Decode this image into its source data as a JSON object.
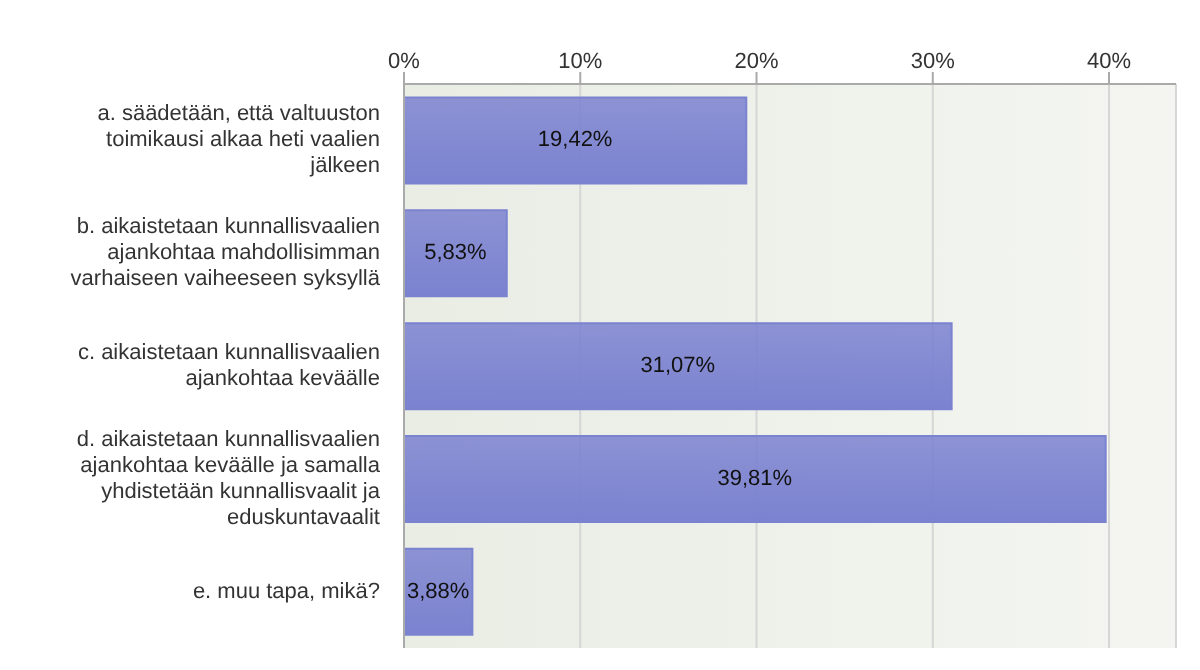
{
  "chart_data": {
    "type": "bar",
    "orientation": "horizontal",
    "categories": [
      "a. säädetään, että valtuuston toimikausi alkaa heti vaalien jälkeen",
      "b. aikaistetaan kunnallisvaalien ajankohtaa mahdollisimman varhaiseen vaiheeseen syksyllä",
      "c. aikaistetaan kunnallisvaalien ajankohtaa keväälle",
      "d. aikaistetaan kunnallisvaalien ajankohtaa keväälle ja samalla yhdistetään kunnallisvaalit ja eduskuntavaalit",
      "e. muu tapa, mikä?"
    ],
    "values": [
      19.42,
      5.83,
      31.07,
      39.81,
      3.88
    ],
    "value_labels": [
      "19,42%",
      "5,83%",
      "31,07%",
      "39,81%",
      "3,88%"
    ],
    "color": "#7b82d0",
    "xlim": [
      0,
      43.8
    ],
    "xticks": [
      {
        "value": 0,
        "label": "0%"
      },
      {
        "value": 10,
        "label": "10%"
      },
      {
        "value": 20,
        "label": "20%"
      },
      {
        "value": 30,
        "label": "30%"
      },
      {
        "value": 40,
        "label": "40%"
      }
    ],
    "grid": "x",
    "legend": false
  }
}
